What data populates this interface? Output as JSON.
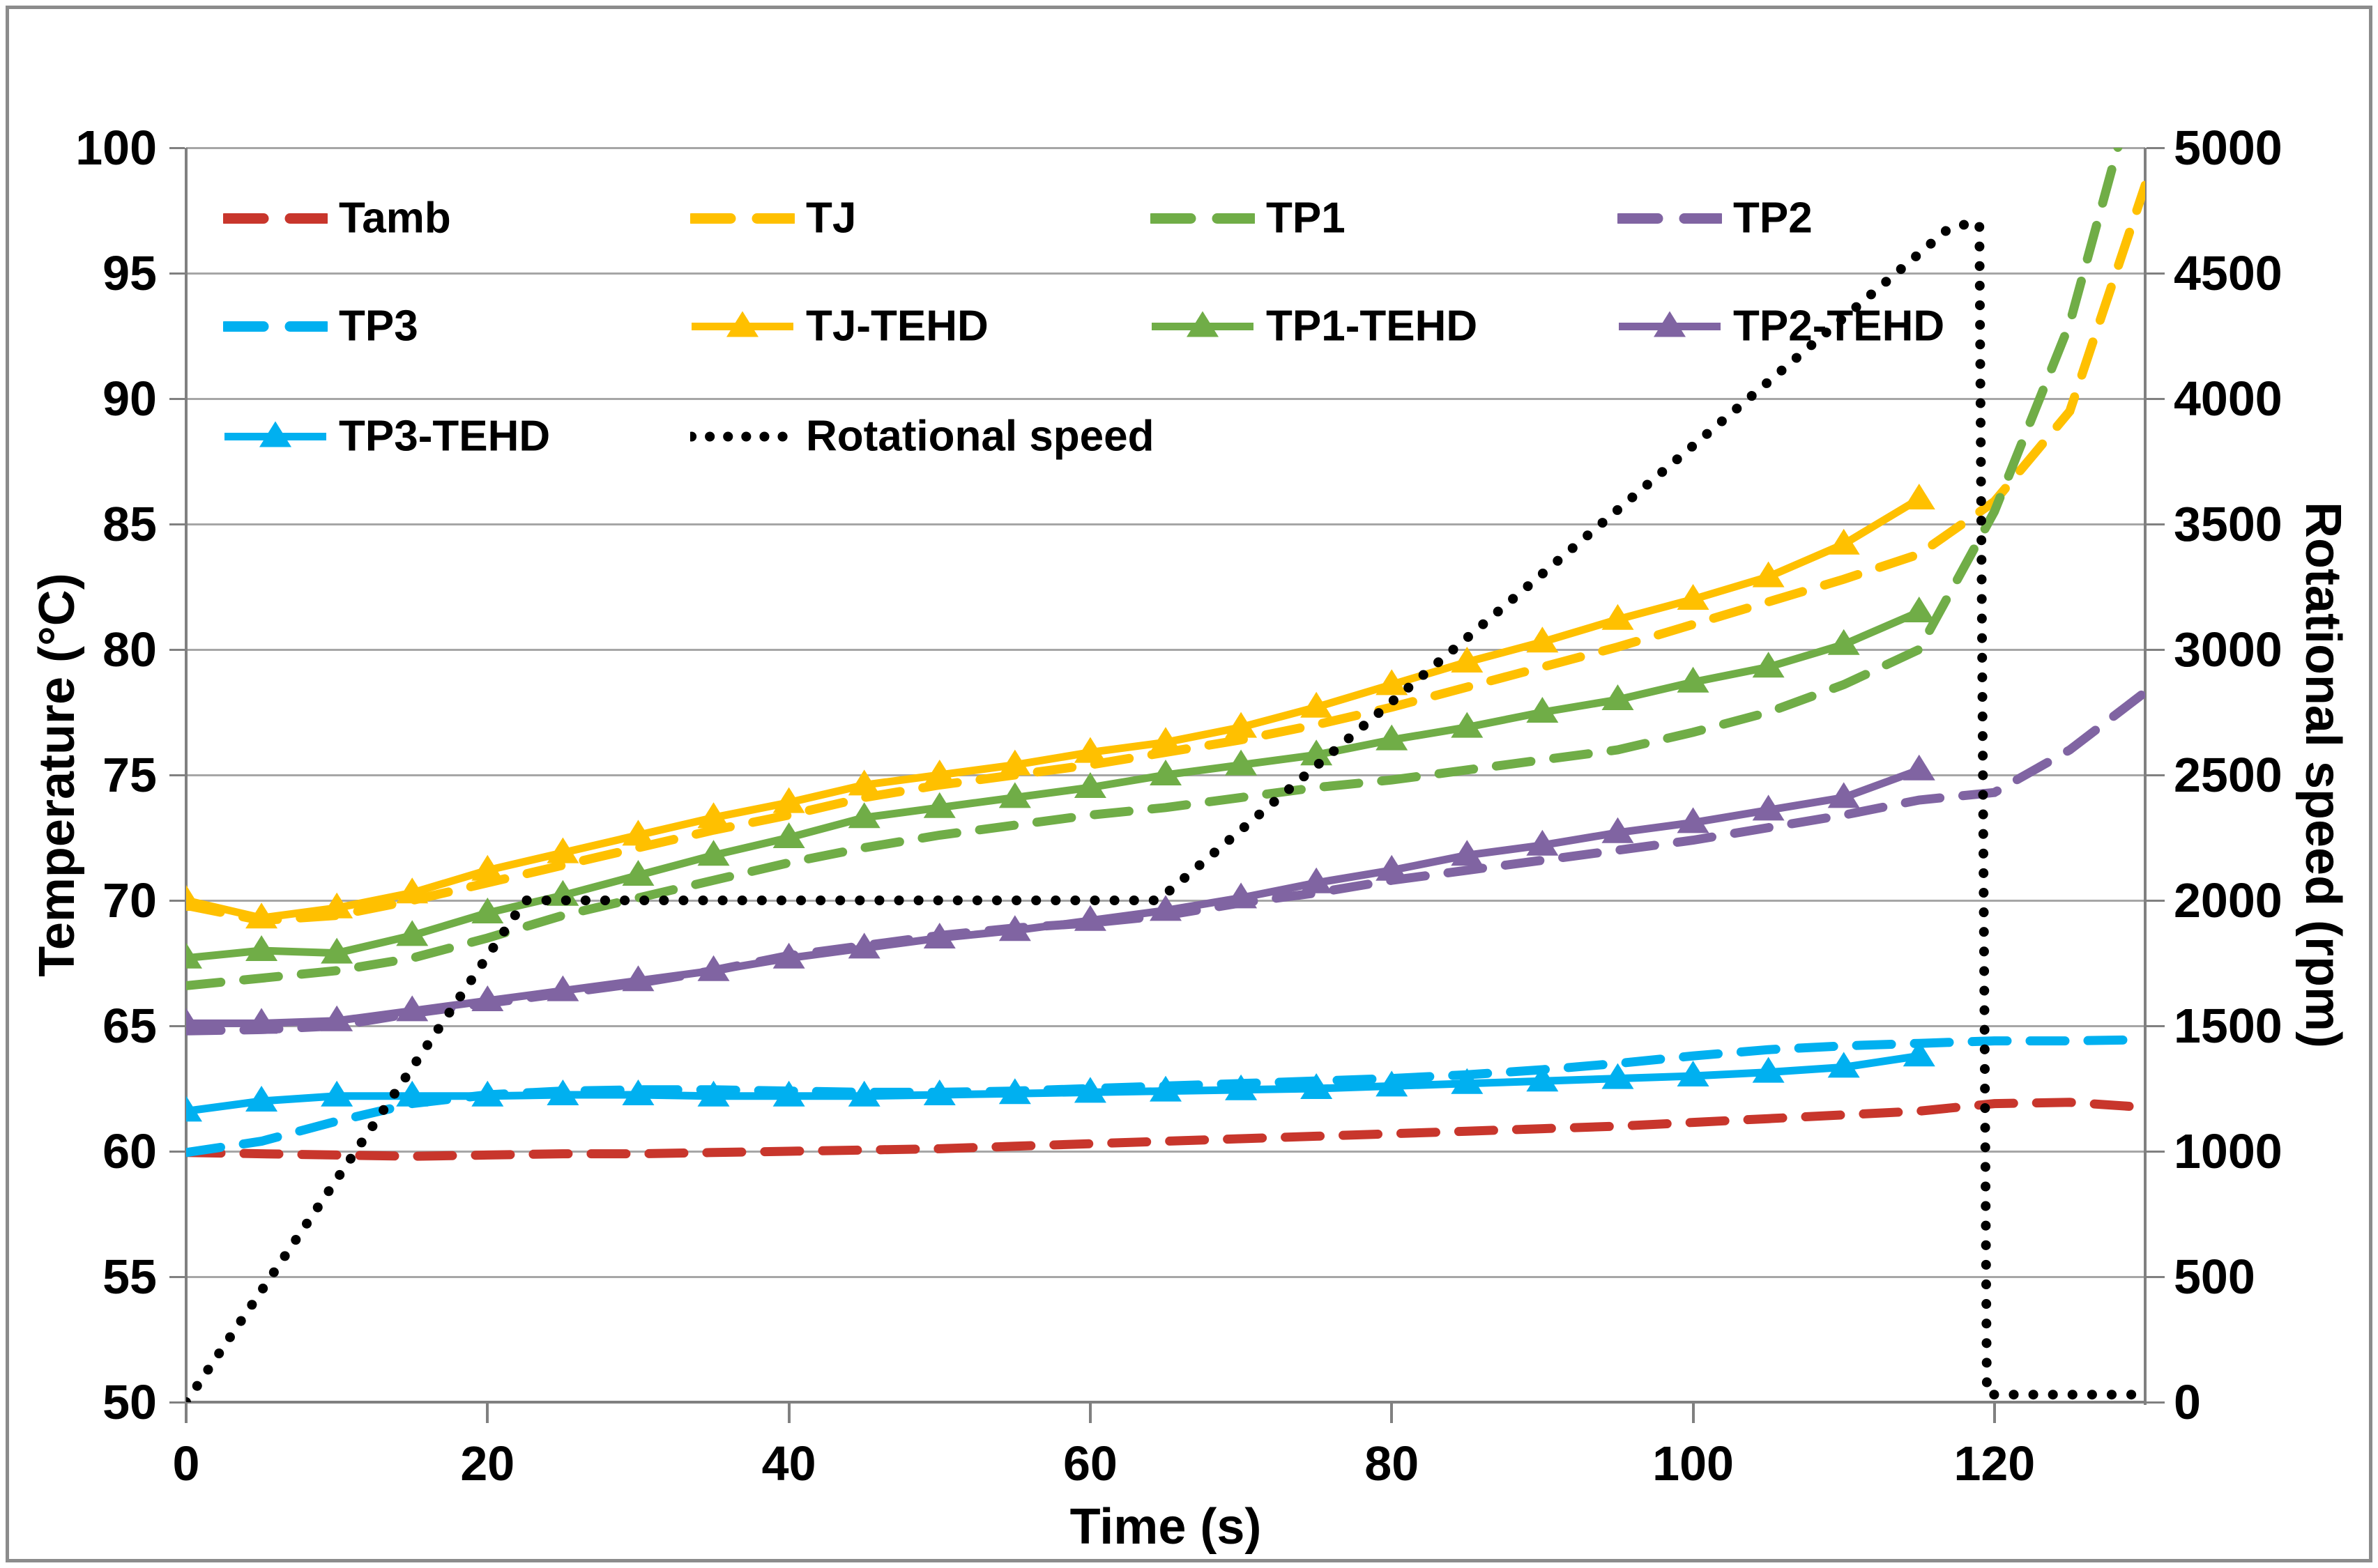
{
  "chart_data": {
    "type": "line",
    "title": "",
    "xlabel": "Time (s)",
    "ylabel_left": "Temperature (°C)",
    "ylabel_right": "Rotational speed (rpm)",
    "x_axis": {
      "min": 0,
      "max": 130,
      "ticks": [
        0,
        20,
        40,
        60,
        80,
        100,
        120
      ]
    },
    "y_left": {
      "min": 50,
      "max": 100,
      "step": 5,
      "ticks": [
        50,
        55,
        60,
        65,
        70,
        75,
        80,
        85,
        90,
        95,
        100
      ]
    },
    "y_right": {
      "min": 0,
      "max": 5000,
      "step": 500,
      "ticks": [
        0,
        500,
        1000,
        1500,
        2000,
        2500,
        3000,
        3500,
        4000,
        4500,
        5000
      ]
    },
    "grid": "horizontal",
    "colors": {
      "red": "#c8362c",
      "gold": "#ffc000",
      "green": "#70ad47",
      "purple": "#8064a2",
      "cyan": "#00b0f0",
      "black": "#000000",
      "gridline": "#a6a6a6",
      "axis": "#808080"
    },
    "series": [
      {
        "name": "Tamb",
        "color": "#c8362c",
        "style": "dashed",
        "axis": "left",
        "x": [
          0,
          5,
          10,
          15,
          20,
          25,
          30,
          35,
          40,
          45,
          50,
          55,
          60,
          65,
          70,
          75,
          80,
          85,
          90,
          95,
          100,
          105,
          110,
          115,
          120,
          125,
          130
        ],
        "y": [
          59.95,
          59.9,
          59.85,
          59.8,
          59.85,
          59.9,
          59.9,
          59.95,
          60.0,
          60.05,
          60.1,
          60.2,
          60.3,
          60.4,
          60.5,
          60.6,
          60.7,
          60.8,
          60.9,
          61.0,
          61.15,
          61.3,
          61.45,
          61.6,
          61.9,
          61.95,
          61.75
        ]
      },
      {
        "name": "TJ",
        "color": "#ffc000",
        "style": "dashed",
        "axis": "left",
        "x": [
          0,
          5,
          10,
          15,
          20,
          25,
          30,
          35,
          40,
          45,
          50,
          55,
          60,
          65,
          70,
          75,
          80,
          85,
          90,
          95,
          100,
          105,
          110,
          115,
          120,
          125,
          130
        ],
        "y": [
          69.8,
          69.2,
          69.4,
          70.0,
          70.7,
          71.4,
          72.1,
          72.8,
          73.4,
          74.1,
          74.6,
          75.0,
          75.4,
          75.9,
          76.4,
          77.0,
          77.7,
          78.5,
          79.3,
          80.1,
          81.0,
          81.9,
          82.8,
          83.8,
          85.9,
          89.5,
          98.5
        ]
      },
      {
        "name": "TP1",
        "color": "#70ad47",
        "style": "dashed",
        "axis": "left",
        "x": [
          0,
          5,
          10,
          15,
          20,
          25,
          30,
          35,
          40,
          45,
          50,
          55,
          60,
          65,
          70,
          75,
          80,
          85,
          90,
          95,
          100,
          105,
          110,
          115,
          120,
          125,
          130
        ],
        "y": [
          66.6,
          66.9,
          67.2,
          67.7,
          68.5,
          69.4,
          70.1,
          70.8,
          71.5,
          72.1,
          72.6,
          73.0,
          73.4,
          73.7,
          74.1,
          74.5,
          74.8,
          75.2,
          75.6,
          76.0,
          76.7,
          77.5,
          78.6,
          80.0,
          85.5,
          93.0,
          104.0
        ]
      },
      {
        "name": "TP2",
        "color": "#8064a2",
        "style": "dashed",
        "axis": "left",
        "x": [
          0,
          5,
          10,
          15,
          20,
          25,
          30,
          35,
          40,
          45,
          50,
          55,
          60,
          65,
          70,
          75,
          80,
          85,
          90,
          95,
          100,
          105,
          110,
          115,
          120,
          125,
          130
        ],
        "y": [
          64.8,
          64.85,
          65.0,
          65.5,
          65.9,
          66.3,
          66.7,
          67.2,
          67.8,
          68.2,
          68.6,
          68.9,
          69.1,
          69.4,
          69.9,
          70.3,
          70.8,
          71.2,
          71.6,
          72.0,
          72.4,
          72.9,
          73.4,
          74.0,
          74.3,
          76.0,
          78.3
        ]
      },
      {
        "name": "TP3",
        "color": "#00b0f0",
        "style": "dashed",
        "axis": "left",
        "x": [
          0,
          5,
          10,
          15,
          20,
          25,
          30,
          35,
          40,
          45,
          50,
          55,
          60,
          65,
          70,
          75,
          80,
          85,
          90,
          95,
          100,
          105,
          110,
          115,
          120,
          125,
          130
        ],
        "y": [
          59.95,
          60.4,
          61.2,
          61.9,
          62.25,
          62.4,
          62.45,
          62.45,
          62.4,
          62.35,
          62.35,
          62.4,
          62.5,
          62.6,
          62.7,
          62.8,
          62.9,
          63.05,
          63.25,
          63.5,
          63.8,
          64.05,
          64.2,
          64.3,
          64.4,
          64.4,
          64.45
        ]
      },
      {
        "name": "TJ-TEHD",
        "color": "#ffc000",
        "style": "solid-triangle",
        "axis": "left",
        "x": [
          0,
          5,
          10,
          15,
          20,
          25,
          30,
          35,
          40,
          45,
          50,
          55,
          60,
          65,
          70,
          75,
          80,
          85,
          90,
          95,
          100,
          105,
          110,
          115
        ],
        "y": [
          70.0,
          69.3,
          69.7,
          70.3,
          71.2,
          71.9,
          72.6,
          73.3,
          73.9,
          74.6,
          75.0,
          75.4,
          75.9,
          76.3,
          76.9,
          77.7,
          78.6,
          79.5,
          80.3,
          81.2,
          82.0,
          82.9,
          84.2,
          86.0
        ]
      },
      {
        "name": "TP1-TEHD",
        "color": "#70ad47",
        "style": "solid-triangle",
        "axis": "left",
        "x": [
          0,
          5,
          10,
          15,
          20,
          25,
          30,
          35,
          40,
          45,
          50,
          55,
          60,
          65,
          70,
          75,
          80,
          85,
          90,
          95,
          100,
          105,
          110,
          115
        ],
        "y": [
          67.7,
          68.0,
          67.9,
          68.6,
          69.5,
          70.2,
          71.0,
          71.8,
          72.5,
          73.3,
          73.7,
          74.1,
          74.5,
          75.0,
          75.4,
          75.8,
          76.4,
          76.9,
          77.5,
          78.0,
          78.7,
          79.3,
          80.2,
          81.5
        ]
      },
      {
        "name": "TP2-TEHD",
        "color": "#8064a2",
        "style": "solid-triangle",
        "axis": "left",
        "x": [
          0,
          5,
          10,
          15,
          20,
          25,
          30,
          35,
          40,
          45,
          50,
          55,
          60,
          65,
          70,
          75,
          80,
          85,
          90,
          95,
          100,
          105,
          110,
          115
        ],
        "y": [
          65.1,
          65.1,
          65.2,
          65.6,
          66.0,
          66.4,
          66.8,
          67.2,
          67.7,
          68.1,
          68.5,
          68.8,
          69.2,
          69.6,
          70.1,
          70.7,
          71.2,
          71.8,
          72.2,
          72.7,
          73.1,
          73.6,
          74.1,
          75.2
        ]
      },
      {
        "name": "TP3-TEHD",
        "color": "#00b0f0",
        "style": "solid-triangle",
        "axis": "left",
        "x": [
          0,
          5,
          10,
          15,
          20,
          25,
          30,
          35,
          40,
          45,
          50,
          55,
          60,
          65,
          70,
          75,
          80,
          85,
          90,
          95,
          100,
          105,
          110,
          115
        ],
        "y": [
          61.6,
          62.0,
          62.2,
          62.2,
          62.2,
          62.25,
          62.25,
          62.2,
          62.2,
          62.2,
          62.25,
          62.3,
          62.35,
          62.4,
          62.45,
          62.5,
          62.6,
          62.7,
          62.8,
          62.9,
          63.0,
          63.15,
          63.35,
          63.8
        ]
      },
      {
        "name": "Rotational speed",
        "color": "#000000",
        "style": "dotted",
        "axis": "right",
        "x": [
          0,
          22.5,
          64.5,
          117,
          118.5,
          119,
          119.5,
          130
        ],
        "y": [
          0,
          2000,
          2000,
          4680,
          4700,
          4700,
          30,
          30
        ]
      }
    ],
    "legend": {
      "position": "inside-top-left",
      "rows": [
        [
          {
            "series": "Tamb"
          },
          {
            "series": "TJ"
          },
          {
            "series": "TP1"
          },
          {
            "series": "TP2"
          }
        ],
        [
          {
            "series": "TP3"
          },
          {
            "series": "TJ-TEHD"
          },
          {
            "series": "TP1-TEHD"
          },
          {
            "series": "TP2-TEHD"
          }
        ],
        [
          {
            "series": "TP3-TEHD"
          },
          {
            "series": "Rotational speed"
          }
        ]
      ]
    }
  }
}
